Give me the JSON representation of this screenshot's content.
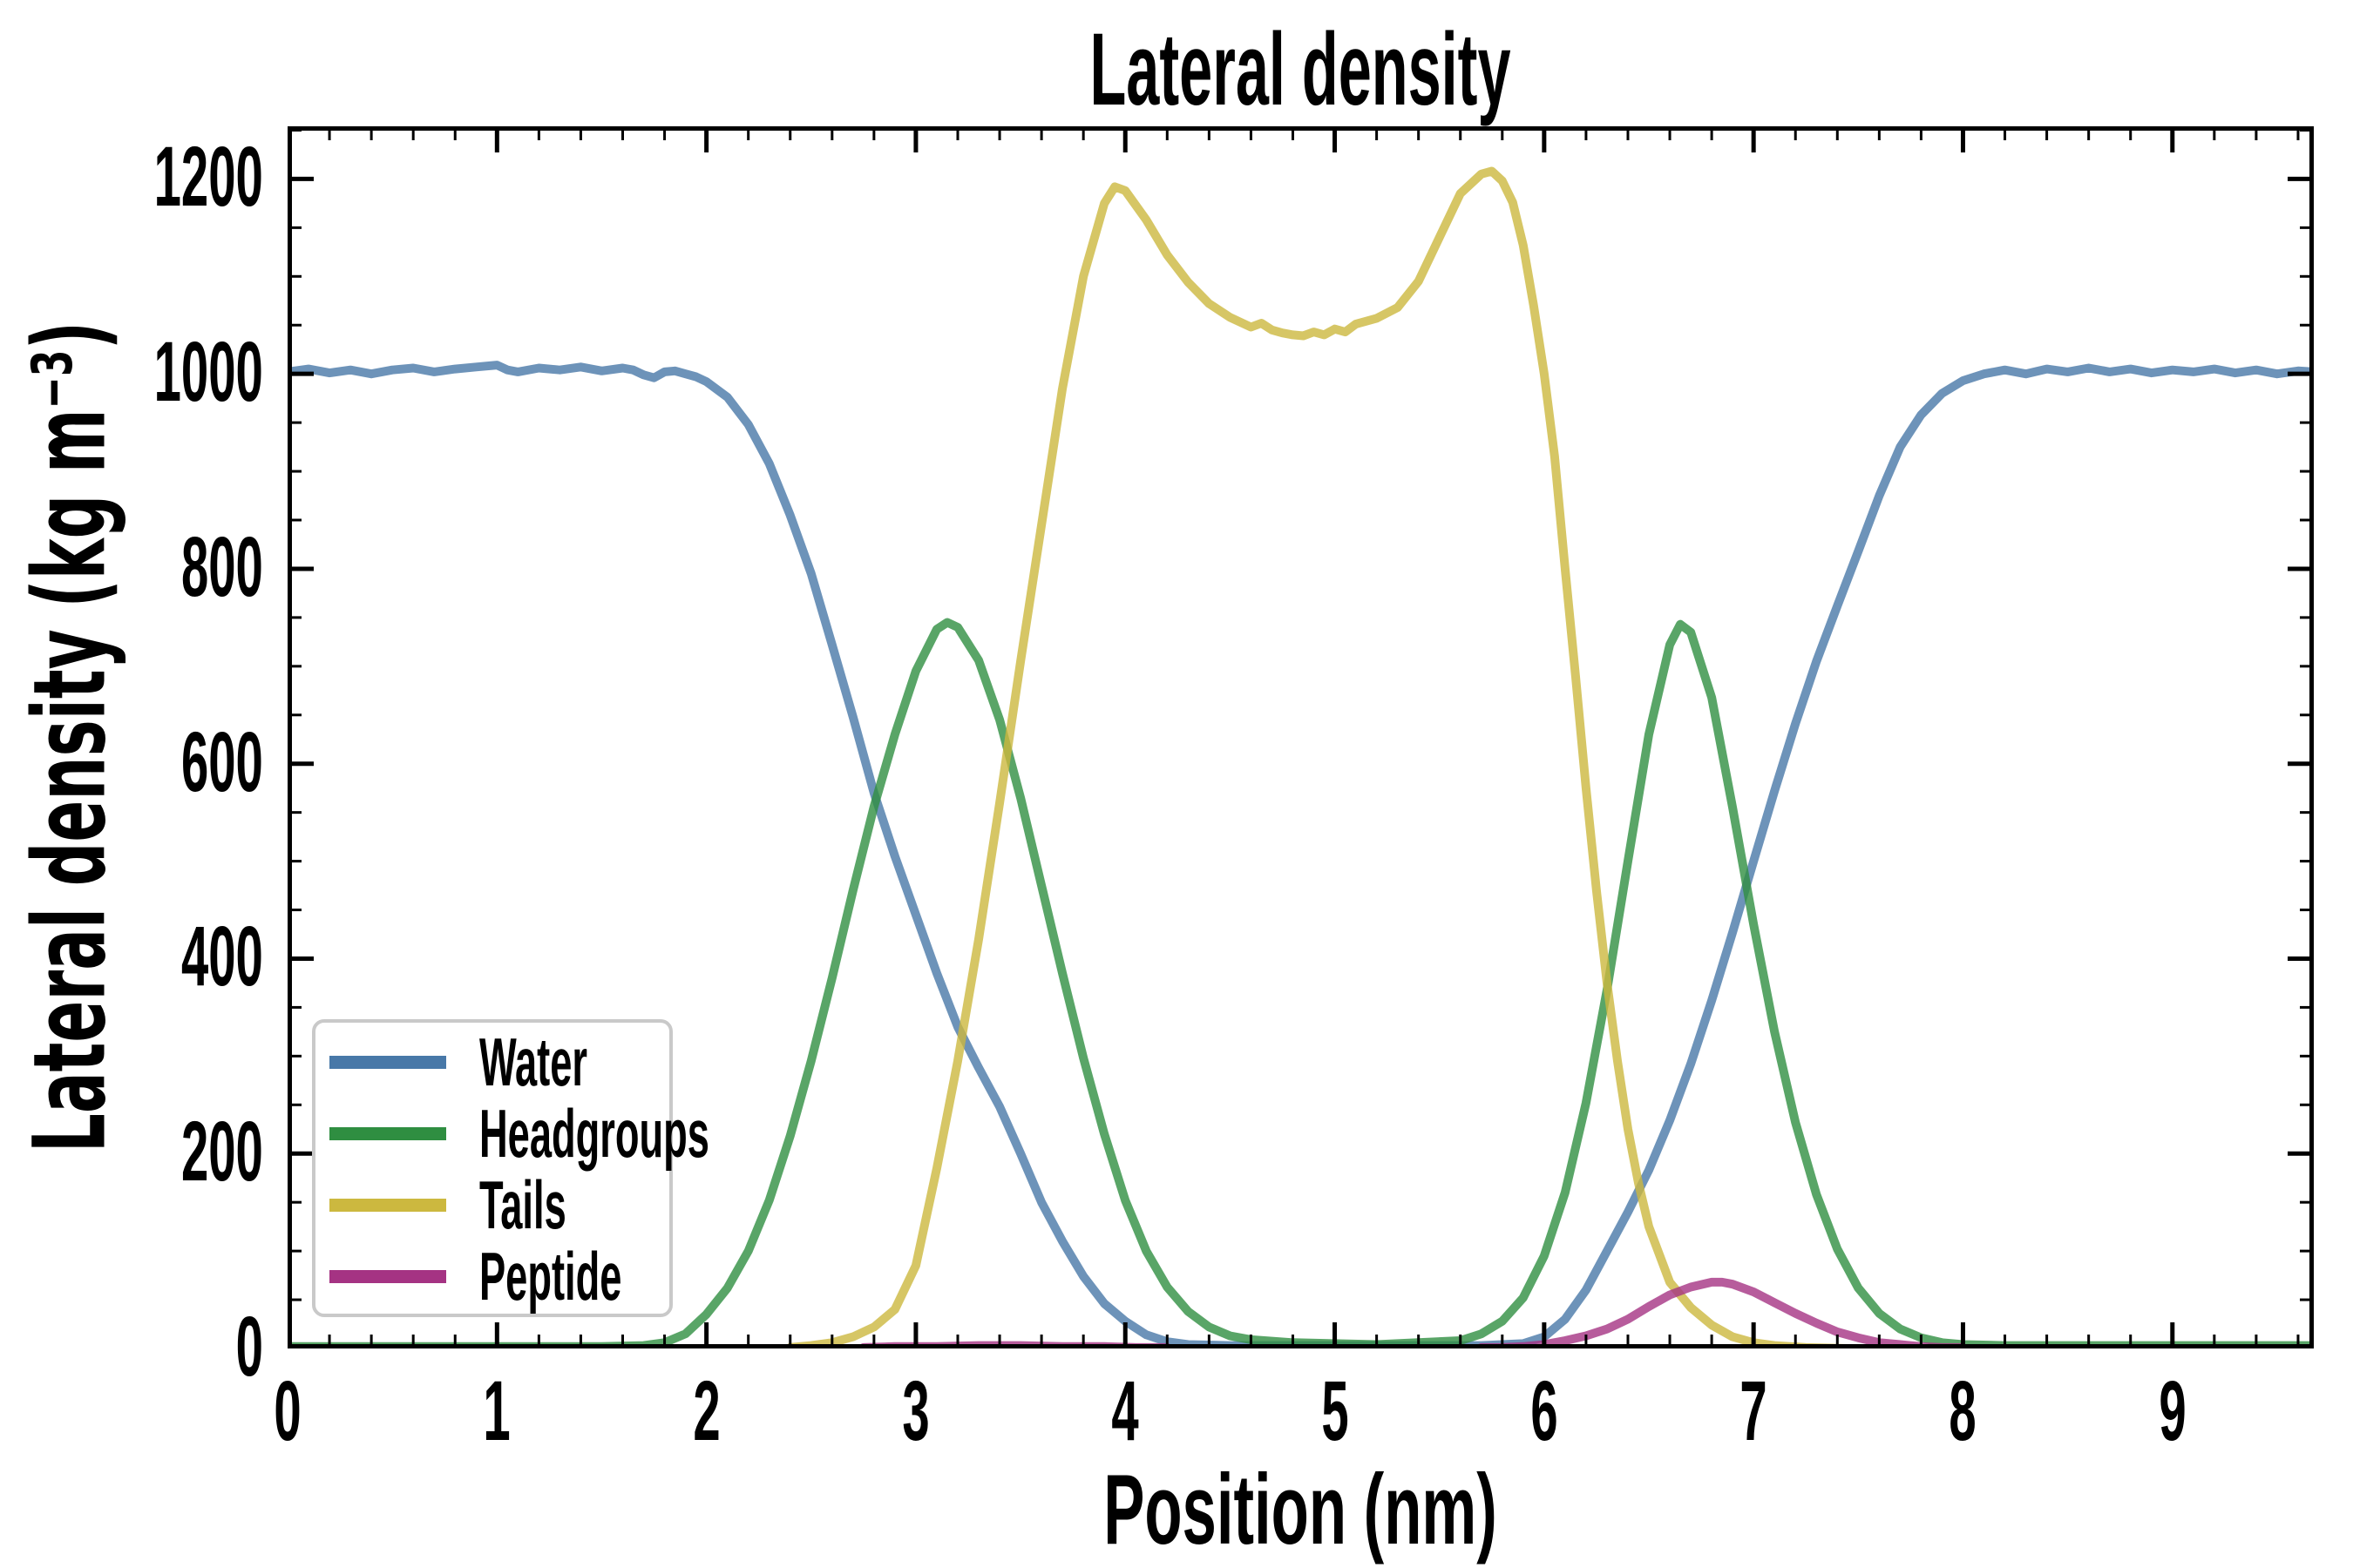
{
  "figure": {
    "title": "Lateral density",
    "xlabel": "Position (nm)",
    "ylabel": "Lateral density (kg m⁻³)",
    "background": "#ffffff",
    "text_color": "#000000"
  },
  "axes": {
    "xlim": [
      0,
      9.675
    ],
    "ylim": [
      0,
      1254
    ],
    "x_major_ticks": [
      0,
      1,
      2,
      3,
      4,
      5,
      6,
      7,
      8,
      9
    ],
    "x_major_labels": [
      "0",
      "1",
      "2",
      "3",
      "4",
      "5",
      "6",
      "7",
      "8",
      "9"
    ],
    "x_minor_step": 0.2,
    "y_major_ticks": [
      0,
      200,
      400,
      600,
      800,
      1000,
      1200
    ],
    "y_major_labels": [
      "0",
      "200",
      "400",
      "600",
      "800",
      "1000",
      "1200"
    ],
    "y_minor_step": 50,
    "spine_color": "#000000",
    "tick_color": "#000000",
    "ticks_inside": true,
    "grid": false
  },
  "legend": {
    "position": "lower left",
    "border_color": "#c9c9c9",
    "labels": [
      "Water",
      "Headgroups",
      "Tails",
      "Peptide"
    ]
  },
  "chart_data": {
    "type": "line",
    "title": "Lateral density",
    "xlabel": "Position (nm)",
    "ylabel": "Lateral density (kg m⁻³)",
    "xlim": [
      0,
      9.675
    ],
    "ylim": [
      0,
      1254
    ],
    "legend_position": "lower left",
    "grid": false,
    "line_opacity": 0.8,
    "series": [
      {
        "name": "Water",
        "color": "#4878A8",
        "points": [
          [
            0,
            1002
          ],
          [
            0.1,
            1005
          ],
          [
            0.2,
            1001
          ],
          [
            0.3,
            1004
          ],
          [
            0.4,
            1000
          ],
          [
            0.5,
            1004
          ],
          [
            0.6,
            1006
          ],
          [
            0.7,
            1002
          ],
          [
            0.8,
            1005
          ],
          [
            0.9,
            1007
          ],
          [
            1.0,
            1009
          ],
          [
            1.05,
            1004
          ],
          [
            1.1,
            1002
          ],
          [
            1.2,
            1006
          ],
          [
            1.3,
            1004
          ],
          [
            1.4,
            1007
          ],
          [
            1.5,
            1003
          ],
          [
            1.6,
            1006
          ],
          [
            1.65,
            1004
          ],
          [
            1.7,
            999
          ],
          [
            1.75,
            996
          ],
          [
            1.8,
            1002
          ],
          [
            1.85,
            1003
          ],
          [
            1.9,
            1000
          ],
          [
            1.95,
            997
          ],
          [
            2.0,
            992
          ],
          [
            2.1,
            976
          ],
          [
            2.2,
            948
          ],
          [
            2.3,
            908
          ],
          [
            2.4,
            855
          ],
          [
            2.5,
            795
          ],
          [
            2.6,
            722
          ],
          [
            2.7,
            648
          ],
          [
            2.8,
            570
          ],
          [
            2.9,
            505
          ],
          [
            3.0,
            445
          ],
          [
            3.1,
            385
          ],
          [
            3.2,
            330
          ],
          [
            3.3,
            288
          ],
          [
            3.4,
            248
          ],
          [
            3.5,
            200
          ],
          [
            3.6,
            150
          ],
          [
            3.7,
            110
          ],
          [
            3.8,
            74
          ],
          [
            3.9,
            46
          ],
          [
            4.0,
            28
          ],
          [
            4.1,
            14
          ],
          [
            4.2,
            7
          ],
          [
            4.3,
            4
          ],
          [
            4.5,
            3
          ],
          [
            4.8,
            3
          ],
          [
            5.1,
            3
          ],
          [
            5.4,
            3
          ],
          [
            5.7,
            3
          ],
          [
            5.9,
            5
          ],
          [
            6.0,
            12
          ],
          [
            6.1,
            30
          ],
          [
            6.2,
            60
          ],
          [
            6.3,
            100
          ],
          [
            6.4,
            140
          ],
          [
            6.5,
            183
          ],
          [
            6.6,
            234
          ],
          [
            6.7,
            292
          ],
          [
            6.8,
            357
          ],
          [
            6.9,
            427
          ],
          [
            7.0,
            500
          ],
          [
            7.1,
            572
          ],
          [
            7.2,
            641
          ],
          [
            7.3,
            705
          ],
          [
            7.4,
            762
          ],
          [
            7.5,
            818
          ],
          [
            7.6,
            875
          ],
          [
            7.7,
            925
          ],
          [
            7.8,
            958
          ],
          [
            7.9,
            980
          ],
          [
            8.0,
            993
          ],
          [
            8.1,
            1000
          ],
          [
            8.2,
            1004
          ],
          [
            8.3,
            1000
          ],
          [
            8.4,
            1005
          ],
          [
            8.5,
            1002
          ],
          [
            8.6,
            1006
          ],
          [
            8.7,
            1002
          ],
          [
            8.8,
            1005
          ],
          [
            8.9,
            1001
          ],
          [
            9.0,
            1004
          ],
          [
            9.1,
            1002
          ],
          [
            9.2,
            1005
          ],
          [
            9.3,
            1001
          ],
          [
            9.4,
            1004
          ],
          [
            9.5,
            1000
          ],
          [
            9.6,
            1003
          ],
          [
            9.675,
            1002
          ]
        ]
      },
      {
        "name": "Headgroups",
        "color": "#2F8E41",
        "points": [
          [
            0,
            2
          ],
          [
            0.3,
            2
          ],
          [
            0.6,
            2
          ],
          [
            0.9,
            2
          ],
          [
            1.2,
            2
          ],
          [
            1.5,
            2
          ],
          [
            1.7,
            3
          ],
          [
            1.8,
            6
          ],
          [
            1.9,
            15
          ],
          [
            2.0,
            35
          ],
          [
            2.1,
            62
          ],
          [
            2.2,
            100
          ],
          [
            2.3,
            152
          ],
          [
            2.4,
            218
          ],
          [
            2.5,
            295
          ],
          [
            2.6,
            380
          ],
          [
            2.7,
            470
          ],
          [
            2.8,
            556
          ],
          [
            2.9,
            630
          ],
          [
            3.0,
            695
          ],
          [
            3.1,
            738
          ],
          [
            3.15,
            745
          ],
          [
            3.2,
            740
          ],
          [
            3.3,
            706
          ],
          [
            3.4,
            645
          ],
          [
            3.5,
            565
          ],
          [
            3.6,
            475
          ],
          [
            3.7,
            385
          ],
          [
            3.8,
            298
          ],
          [
            3.9,
            220
          ],
          [
            4.0,
            152
          ],
          [
            4.1,
            100
          ],
          [
            4.2,
            63
          ],
          [
            4.3,
            38
          ],
          [
            4.4,
            22
          ],
          [
            4.5,
            13
          ],
          [
            4.6,
            9
          ],
          [
            4.8,
            6
          ],
          [
            5.0,
            5
          ],
          [
            5.2,
            4
          ],
          [
            5.4,
            6
          ],
          [
            5.6,
            8
          ],
          [
            5.7,
            15
          ],
          [
            5.8,
            28
          ],
          [
            5.9,
            52
          ],
          [
            6.0,
            95
          ],
          [
            6.1,
            160
          ],
          [
            6.2,
            252
          ],
          [
            6.3,
            368
          ],
          [
            6.4,
            500
          ],
          [
            6.5,
            630
          ],
          [
            6.6,
            722
          ],
          [
            6.65,
            743
          ],
          [
            6.7,
            735
          ],
          [
            6.8,
            668
          ],
          [
            6.9,
            555
          ],
          [
            7.0,
            435
          ],
          [
            7.1,
            325
          ],
          [
            7.2,
            232
          ],
          [
            7.3,
            158
          ],
          [
            7.4,
            102
          ],
          [
            7.5,
            62
          ],
          [
            7.6,
            36
          ],
          [
            7.7,
            20
          ],
          [
            7.8,
            11
          ],
          [
            7.9,
            6
          ],
          [
            8.0,
            4
          ],
          [
            8.2,
            3
          ],
          [
            8.5,
            3
          ],
          [
            8.8,
            3
          ],
          [
            9.1,
            3
          ],
          [
            9.4,
            3
          ],
          [
            9.675,
            3
          ]
        ]
      },
      {
        "name": "Tails",
        "color": "#CCB83F",
        "points": [
          [
            2.4,
            1
          ],
          [
            2.5,
            3
          ],
          [
            2.6,
            6
          ],
          [
            2.7,
            12
          ],
          [
            2.8,
            22
          ],
          [
            2.9,
            40
          ],
          [
            3.0,
            85
          ],
          [
            3.1,
            185
          ],
          [
            3.2,
            295
          ],
          [
            3.3,
            420
          ],
          [
            3.4,
            560
          ],
          [
            3.5,
            705
          ],
          [
            3.6,
            845
          ],
          [
            3.7,
            985
          ],
          [
            3.8,
            1100
          ],
          [
            3.9,
            1175
          ],
          [
            3.95,
            1192
          ],
          [
            4.0,
            1188
          ],
          [
            4.1,
            1158
          ],
          [
            4.2,
            1122
          ],
          [
            4.3,
            1094
          ],
          [
            4.4,
            1072
          ],
          [
            4.5,
            1058
          ],
          [
            4.6,
            1048
          ],
          [
            4.65,
            1052
          ],
          [
            4.7,
            1045
          ],
          [
            4.75,
            1042
          ],
          [
            4.8,
            1040
          ],
          [
            4.85,
            1039
          ],
          [
            4.9,
            1043
          ],
          [
            4.95,
            1040
          ],
          [
            5.0,
            1046
          ],
          [
            5.05,
            1043
          ],
          [
            5.1,
            1051
          ],
          [
            5.2,
            1057
          ],
          [
            5.3,
            1068
          ],
          [
            5.4,
            1095
          ],
          [
            5.5,
            1140
          ],
          [
            5.6,
            1185
          ],
          [
            5.7,
            1205
          ],
          [
            5.75,
            1208
          ],
          [
            5.8,
            1198
          ],
          [
            5.85,
            1176
          ],
          [
            5.9,
            1132
          ],
          [
            5.95,
            1070
          ],
          [
            6.0,
            1000
          ],
          [
            6.05,
            915
          ],
          [
            6.1,
            800
          ],
          [
            6.15,
            690
          ],
          [
            6.2,
            575
          ],
          [
            6.25,
            470
          ],
          [
            6.3,
            375
          ],
          [
            6.35,
            295
          ],
          [
            6.4,
            225
          ],
          [
            6.45,
            170
          ],
          [
            6.5,
            125
          ],
          [
            6.6,
            68
          ],
          [
            6.7,
            42
          ],
          [
            6.8,
            24
          ],
          [
            6.9,
            12
          ],
          [
            7.0,
            6
          ],
          [
            7.1,
            3
          ],
          [
            7.25,
            1
          ],
          [
            7.45,
            0
          ]
        ]
      },
      {
        "name": "Peptide",
        "color": "#A53383",
        "points": [
          [
            2.75,
            1
          ],
          [
            2.9,
            2
          ],
          [
            3.1,
            2
          ],
          [
            3.3,
            3
          ],
          [
            3.5,
            3
          ],
          [
            3.7,
            2
          ],
          [
            3.9,
            2
          ],
          [
            4.05,
            1
          ],
          [
            4.2,
            1
          ],
          null,
          [
            5.7,
            1
          ],
          [
            5.8,
            1
          ],
          [
            5.9,
            2
          ],
          [
            6.0,
            4
          ],
          [
            6.1,
            8
          ],
          [
            6.2,
            13
          ],
          [
            6.3,
            20
          ],
          [
            6.4,
            30
          ],
          [
            6.5,
            43
          ],
          [
            6.6,
            55
          ],
          [
            6.7,
            63
          ],
          [
            6.8,
            68
          ],
          [
            6.85,
            68
          ],
          [
            6.9,
            66
          ],
          [
            7.0,
            58
          ],
          [
            7.1,
            47
          ],
          [
            7.2,
            36
          ],
          [
            7.3,
            26
          ],
          [
            7.4,
            17
          ],
          [
            7.5,
            11
          ],
          [
            7.6,
            6
          ],
          [
            7.7,
            4
          ],
          [
            7.8,
            2
          ],
          [
            7.9,
            1
          ],
          [
            8.0,
            1
          ]
        ]
      }
    ]
  }
}
